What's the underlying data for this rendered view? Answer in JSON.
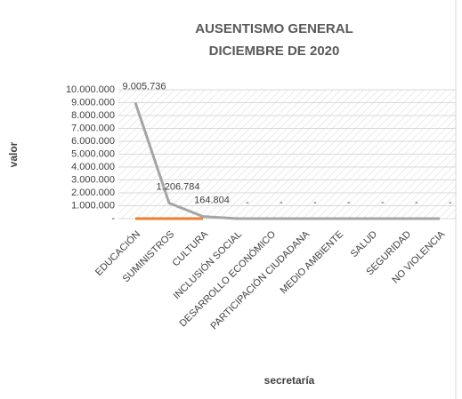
{
  "chart_data": {
    "type": "line",
    "title": "AUSENTISMO GENERAL",
    "subtitle": "DICIEMBRE DE 2020",
    "x_label": "secretaría",
    "y_label": "valor",
    "categories": [
      "EDUCACIÓN",
      "SUMINISTROS",
      "CULTURA",
      "INCLUSIÓN SOCIAL",
      "DESARROLLO ECONÓMICO",
      "PARTICIPACIÓN CIUDADANA",
      "MEDIO AMBIENTE",
      "SALUD",
      "SEGURIDAD",
      "NO VIOLENCIA"
    ],
    "series": [
      {
        "color": "#a5a5a5",
        "values": [
          9005736,
          1206784,
          164804,
          0,
          0,
          0,
          0,
          0,
          0,
          0
        ],
        "value_labels": [
          "9.005.736",
          "1.206.784",
          "164.804",
          "-",
          "-",
          "-",
          "-",
          "-",
          "-",
          "-"
        ]
      },
      {
        "color": "#ed7d31",
        "values": [
          0,
          0,
          0,
          null,
          null,
          null,
          null,
          null,
          null,
          null
        ]
      }
    ],
    "ylim": [
      0,
      10000000
    ],
    "yticks": [
      {
        "value": 0,
        "label": "-"
      },
      {
        "value": 1000000,
        "label": "1.000.000"
      },
      {
        "value": 2000000,
        "label": "2.000.000"
      },
      {
        "value": 3000000,
        "label": "3.000.000"
      },
      {
        "value": 4000000,
        "label": "4.000.000"
      },
      {
        "value": 5000000,
        "label": "5.000.000"
      },
      {
        "value": 6000000,
        "label": "6.000.000"
      },
      {
        "value": 7000000,
        "label": "7.000.000"
      },
      {
        "value": 8000000,
        "label": "8.000.000"
      },
      {
        "value": 9000000,
        "label": "9.000.000"
      },
      {
        "value": 10000000,
        "label": "10.000.000"
      }
    ],
    "grid": true
  }
}
